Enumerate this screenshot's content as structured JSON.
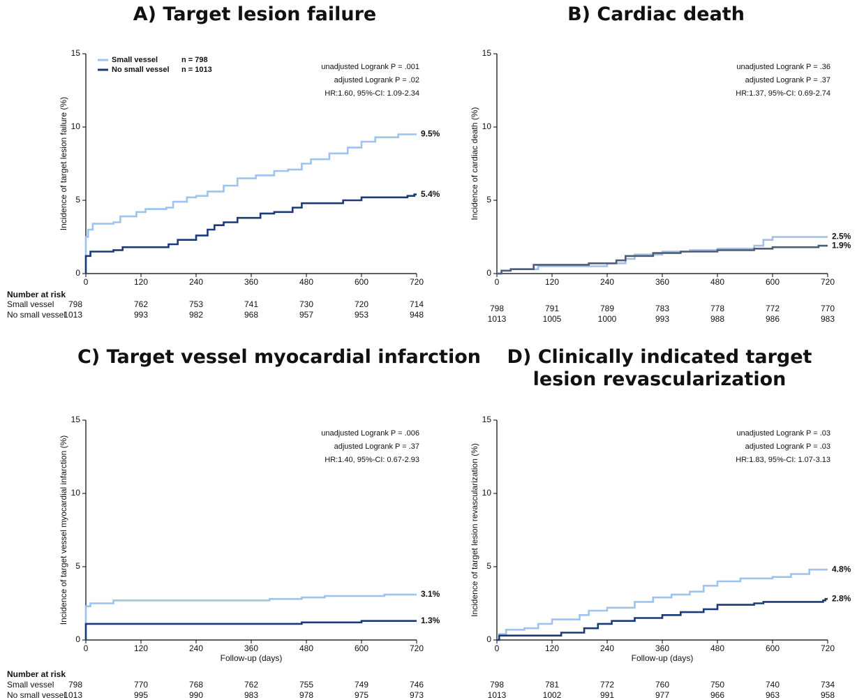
{
  "chart_data": [
    {
      "type": "line",
      "title": "A) Target lesion failure",
      "ylabel": "Incidence of target lesion failure (%)",
      "xlim": [
        0,
        720
      ],
      "ylim": [
        0,
        15
      ],
      "xticks": [
        0,
        120,
        240,
        360,
        480,
        600,
        720
      ],
      "yticks": [
        0,
        5,
        10,
        15
      ],
      "annotations": [
        "unadjusted Logrank P = .001",
        "adjusted Logrank P = .02",
        "HR:1.60, 95%-CI: 1.09-2.34"
      ],
      "series": [
        {
          "name": "Small vessel",
          "n_label": "n = 798",
          "color": "#9dc3ee",
          "end_label": "9.5%",
          "x": [
            0,
            0,
            5,
            15,
            60,
            75,
            110,
            130,
            175,
            190,
            220,
            240,
            265,
            300,
            330,
            370,
            410,
            440,
            470,
            490,
            530,
            570,
            600,
            630,
            680,
            720
          ],
          "values": [
            0,
            2.5,
            3.0,
            3.4,
            3.5,
            3.9,
            4.2,
            4.4,
            4.5,
            4.9,
            5.2,
            5.3,
            5.6,
            6.0,
            6.5,
            6.7,
            7.0,
            7.1,
            7.5,
            7.8,
            8.2,
            8.6,
            9.0,
            9.3,
            9.5,
            9.5
          ]
        },
        {
          "name": "No small vessel",
          "n_label": "n = 1013",
          "color": "#1a3a78",
          "end_label": "5.4%",
          "x": [
            0,
            0,
            10,
            60,
            80,
            180,
            200,
            240,
            265,
            280,
            300,
            330,
            380,
            410,
            450,
            470,
            490,
            560,
            600,
            700,
            715,
            720
          ],
          "values": [
            0,
            1.2,
            1.5,
            1.6,
            1.8,
            2.0,
            2.3,
            2.6,
            3.0,
            3.3,
            3.5,
            3.8,
            4.1,
            4.2,
            4.5,
            4.8,
            4.8,
            5.0,
            5.2,
            5.3,
            5.4,
            5.4
          ]
        }
      ],
      "risk_table": {
        "title": "Number at risk",
        "rows": [
          {
            "label": "Small vessel",
            "values": [
              798,
              762,
              753,
              741,
              730,
              720,
              714
            ]
          },
          {
            "label": "No small vessel",
            "values": [
              1013,
              993,
              982,
              968,
              957,
              953,
              948
            ]
          }
        ]
      }
    },
    {
      "type": "line",
      "title": "B) Cardiac death",
      "ylabel": "Incidence of cardiac death (%)",
      "xlim": [
        0,
        720
      ],
      "ylim": [
        0,
        15
      ],
      "xticks": [
        0,
        120,
        240,
        360,
        480,
        600,
        720
      ],
      "yticks": [
        0,
        5,
        10,
        15
      ],
      "annotations": [
        "unadjusted Logrank P = .36",
        "adjusted Logrank P = .37",
        "HR:1.37, 95%-CI: 0.69-2.74"
      ],
      "series": [
        {
          "color": "#a6bfe0",
          "end_label": "2.5%",
          "x": [
            0,
            10,
            30,
            90,
            240,
            280,
            300,
            360,
            420,
            480,
            560,
            580,
            600,
            720
          ],
          "values": [
            0,
            0.2,
            0.3,
            0.5,
            0.7,
            1.0,
            1.3,
            1.5,
            1.6,
            1.7,
            1.9,
            2.3,
            2.5,
            2.5
          ]
        },
        {
          "color": "#4d5d7a",
          "end_label": "1.9%",
          "x": [
            0,
            10,
            30,
            80,
            200,
            260,
            280,
            340,
            400,
            480,
            560,
            600,
            700,
            720
          ],
          "values": [
            0,
            0.2,
            0.3,
            0.6,
            0.7,
            0.9,
            1.2,
            1.4,
            1.5,
            1.6,
            1.7,
            1.8,
            1.9,
            1.9
          ]
        }
      ],
      "risk_table": {
        "rows": [
          {
            "values": [
              798,
              791,
              789,
              783,
              778,
              772,
              770
            ]
          },
          {
            "values": [
              1013,
              1005,
              1000,
              993,
              988,
              986,
              983
            ]
          }
        ]
      }
    },
    {
      "type": "line",
      "title": "C) Target vessel myocardial infarction",
      "ylabel": "Incidence of target vessel myocardial infarction (%)",
      "xlabel": "Follow-up (days)",
      "xlim": [
        0,
        720
      ],
      "ylim": [
        0,
        15
      ],
      "xticks": [
        0,
        120,
        240,
        360,
        480,
        600,
        720
      ],
      "yticks": [
        0,
        5,
        10,
        15
      ],
      "annotations": [
        "unadjusted Logrank P = .006",
        "adjusted Logrank P = .37",
        "HR:1.40, 95%-CI: 0.67-2.93"
      ],
      "series": [
        {
          "color": "#9dc3ee",
          "end_label": "3.1%",
          "x": [
            0,
            0,
            10,
            60,
            400,
            470,
            520,
            650,
            720
          ],
          "values": [
            0,
            2.3,
            2.5,
            2.7,
            2.8,
            2.9,
            3.0,
            3.1,
            3.1
          ]
        },
        {
          "color": "#1a3a78",
          "end_label": "1.3%",
          "x": [
            0,
            0,
            470,
            600,
            720
          ],
          "values": [
            0,
            1.1,
            1.2,
            1.3,
            1.3
          ]
        }
      ],
      "risk_table": {
        "title": "Number at risk",
        "rows": [
          {
            "label": "Small vessel",
            "values": [
              798,
              770,
              768,
              762,
              755,
              749,
              746
            ]
          },
          {
            "label": "No small vessel",
            "values": [
              1013,
              995,
              990,
              983,
              978,
              975,
              973
            ]
          }
        ]
      }
    },
    {
      "type": "line",
      "title": "D) Clinically indicated target lesion revascularization",
      "ylabel": "Incidence of target lesion revascularization (%)",
      "xlabel": "Follow-up (days)",
      "xlim": [
        0,
        720
      ],
      "ylim": [
        0,
        15
      ],
      "xticks": [
        0,
        120,
        240,
        360,
        480,
        600,
        720
      ],
      "yticks": [
        0,
        5,
        10,
        15
      ],
      "annotations": [
        "unadjusted Logrank P = .03",
        "adjusted Logrank P = .03",
        "HR:1.83, 95%-CI: 1.07-3.13"
      ],
      "series": [
        {
          "color": "#9dc3ee",
          "end_label": "4.8%",
          "x": [
            0,
            5,
            20,
            60,
            90,
            120,
            180,
            200,
            240,
            300,
            340,
            380,
            420,
            450,
            480,
            530,
            600,
            640,
            680,
            720
          ],
          "values": [
            0,
            0.4,
            0.7,
            0.8,
            1.1,
            1.4,
            1.7,
            2.0,
            2.2,
            2.6,
            2.9,
            3.1,
            3.3,
            3.7,
            4.0,
            4.2,
            4.3,
            4.5,
            4.8,
            4.8
          ]
        },
        {
          "color": "#1a3a78",
          "end_label": "2.8%",
          "x": [
            0,
            5,
            140,
            190,
            220,
            250,
            300,
            360,
            400,
            450,
            480,
            560,
            580,
            710,
            715,
            720
          ],
          "values": [
            0,
            0.3,
            0.5,
            0.8,
            1.1,
            1.3,
            1.5,
            1.7,
            1.9,
            2.1,
            2.4,
            2.5,
            2.6,
            2.7,
            2.8,
            2.8
          ]
        }
      ],
      "risk_table": {
        "rows": [
          {
            "values": [
              798,
              781,
              772,
              760,
              750,
              740,
              734
            ]
          },
          {
            "values": [
              1013,
              1002,
              991,
              977,
              966,
              963,
              958
            ]
          }
        ]
      }
    }
  ]
}
